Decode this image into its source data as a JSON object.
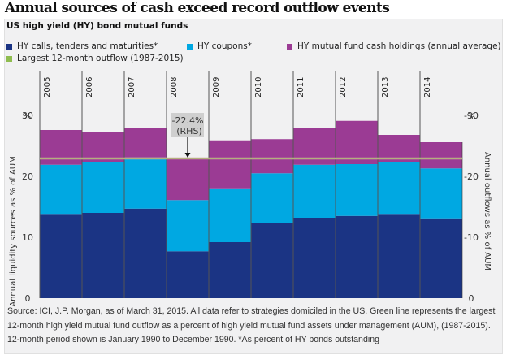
{
  "title": "Annual sources of cash exceed record outflow events",
  "chart_data": {
    "type": "bar",
    "stacked": true,
    "title": "Annual sources of cash exceed record outflow events",
    "subtitle": "US high yield (HY) bond mutual funds",
    "categories": [
      "2005",
      "2006",
      "2007",
      "2008",
      "2009",
      "2010",
      "2011",
      "2012",
      "2013",
      "2014"
    ],
    "series": [
      {
        "name": "HY calls, tenders and maturities*",
        "color": "#1b3484",
        "values": [
          13.7,
          14.0,
          14.7,
          7.7,
          9.2,
          12.3,
          13.2,
          13.5,
          13.7,
          13.1
        ]
      },
      {
        "name": "HY coupons*",
        "color": "#00a8e2",
        "values": [
          8.2,
          8.4,
          8.4,
          8.4,
          8.7,
          8.2,
          8.7,
          8.5,
          8.6,
          8.2
        ]
      },
      {
        "name": "HY mutual fund cash holdings (annual average)",
        "color": "#9b3b94",
        "values": [
          5.7,
          4.8,
          4.9,
          6.8,
          8.0,
          5.6,
          6.0,
          7.1,
          4.5,
          4.3
        ]
      }
    ],
    "reference_line": {
      "name": "Largest 12-month outflow (1987-2015)",
      "color": "#8fbc4f",
      "value": 22.4,
      "axis": "right"
    },
    "annotation": {
      "text_line1": "-22.4%",
      "text_line2": "(RHS)",
      "category": "2008"
    },
    "ylabel": "Annual liquidity sources as % of AUM",
    "ylabel_right": "Annual outflows as % of AUM",
    "yunit": "%",
    "ylim": [
      0,
      30
    ],
    "yticks": [
      "0",
      "10",
      "20",
      "30"
    ],
    "yticks_right": [
      "0",
      "-10",
      "-20",
      "-30"
    ],
    "legend_position": "top-left"
  },
  "legend": [
    {
      "label": "HY calls, tenders and maturities*",
      "color": "#1b3484"
    },
    {
      "label": "HY coupons*",
      "color": "#00a8e2"
    },
    {
      "label": "HY mutual fund cash holdings (annual average)",
      "color": "#9b3b94"
    },
    {
      "label": "Largest 12-month outflow (1987-2015)",
      "color": "#8fbc4f"
    }
  ],
  "source": "Source: ICI, J.P. Morgan, as of March 31, 2015. All data refer to strategies domiciled in the US. Green line represents the largest 12-month high yield mutual fund outflow as a percent of high yield mutual fund assets under management (AUM), (1987-2015). 12-month period shown is January 1990 to December 1990. *As percent of HY bonds outstanding"
}
